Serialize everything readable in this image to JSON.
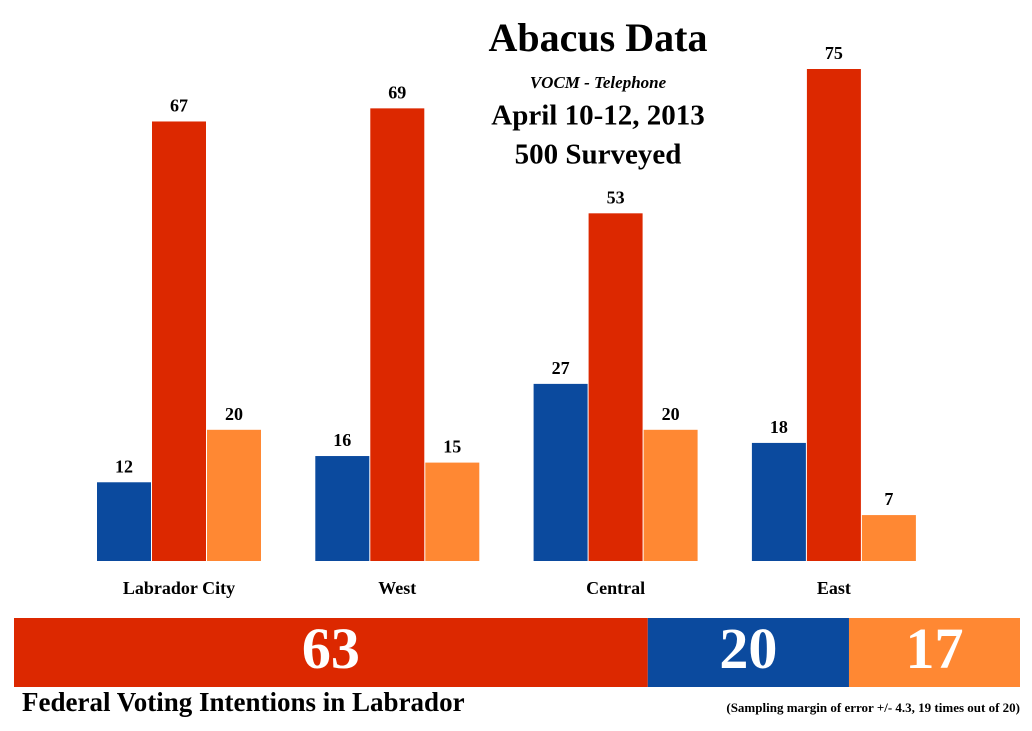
{
  "chart_data": [
    {
      "type": "bar",
      "title": "Abacus Data",
      "subtitle": "VOCM - Telephone",
      "annotations": [
        "April 10-12, 2013",
        "500 Surveyed"
      ],
      "categories": [
        "Labrador City",
        "West",
        "Central",
        "East"
      ],
      "series": [
        {
          "color": "#0b4a9e",
          "values": [
            12,
            16,
            27,
            18
          ]
        },
        {
          "color": "#dc2800",
          "values": [
            67,
            69,
            53,
            75
          ]
        },
        {
          "color": "#ff8833",
          "values": [
            20,
            15,
            20,
            7
          ]
        }
      ]
    },
    {
      "type": "stacked_hbar",
      "title": "Federal Voting Intentions in Labrador",
      "note": "(Sampling margin of error +/- 4.3, 19 times out of 20)",
      "series": [
        {
          "color": "#dc2800",
          "values": [
            63
          ]
        },
        {
          "color": "#0b4a9e",
          "values": [
            20
          ]
        },
        {
          "color": "#ff8833",
          "values": [
            17
          ]
        }
      ]
    }
  ]
}
